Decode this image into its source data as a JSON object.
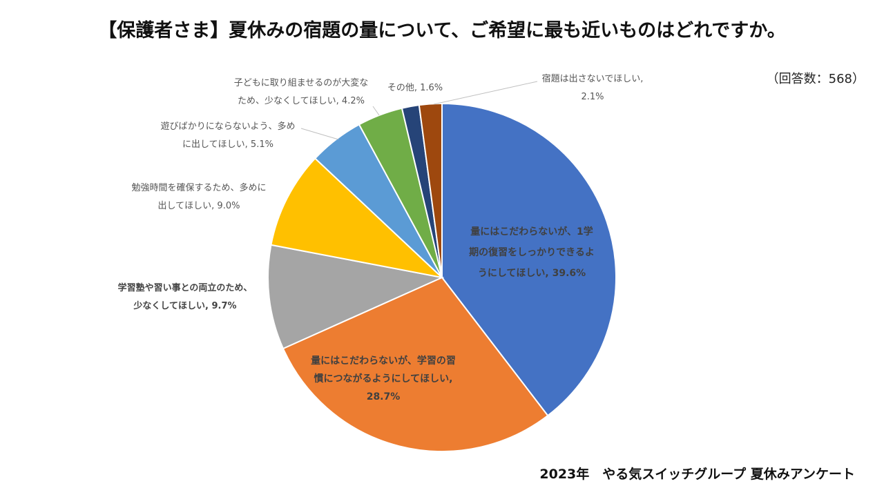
{
  "title": "【保護者さま】夏休みの宿題の量について、ご希望に最も近いものはどれですか。",
  "respondents": "（回答数：568）",
  "footer": "2023年　やる気スイッチグループ 夏休みアンケート",
  "chart_data": {
    "type": "pie",
    "title": "【保護者さま】夏休みの宿題の量について、ご希望に最も近いものはどれですか。",
    "start_angle_deg": 0,
    "direction": "clockwise",
    "slices": [
      {
        "label": [
          "量にはこだわらないが、1学",
          "期の復習をしっかりできるよ",
          "うにしてほしい, 39.6%"
        ],
        "value": 39.6,
        "color": "#4472C4"
      },
      {
        "label": [
          "量にはこだわらないが、学習の習",
          "慣につながるようにしてほしい,",
          "28.7%"
        ],
        "value": 28.7,
        "color": "#ED7D31"
      },
      {
        "label": [
          "学習塾や習い事との両立のため、",
          "少なくしてほしい, 9.7%"
        ],
        "value": 9.7,
        "color": "#A5A5A5"
      },
      {
        "label": [
          "勉強時間を確保するため、多めに",
          "出してほしい, 9.0%"
        ],
        "value": 9.0,
        "color": "#FFC000"
      },
      {
        "label": [
          "遊びばかりにならないよう、多め",
          "に出してほしい, 5.1%"
        ],
        "value": 5.1,
        "color": "#5B9BD5"
      },
      {
        "label": [
          "子どもに取り組ませるのが大変な",
          "ため、少なくしてほしい, 4.2%"
        ],
        "value": 4.2,
        "color": "#70AD47"
      },
      {
        "label": [
          "その他, 1.6%"
        ],
        "value": 1.6,
        "color": "#264478"
      },
      {
        "label": [
          "宿題は出さないでほしい,",
          "2.1%"
        ],
        "value": 2.1,
        "color": "#9E480E"
      }
    ]
  }
}
